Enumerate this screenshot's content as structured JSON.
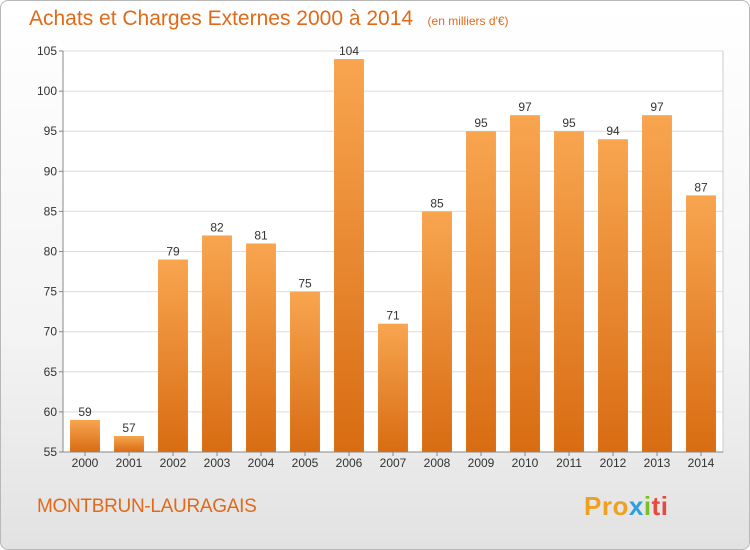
{
  "title": "Achats et Charges Externes 2000 à 2014",
  "unit": "(en milliers d'€)",
  "commune": "MONTBRUN-LAURAGAIS",
  "logo": {
    "parts": [
      "Pro",
      "x",
      "i",
      "ti"
    ]
  },
  "colors": {
    "bar": "#f08a2a",
    "bar_light": "#f8a550",
    "bar_dark": "#d86c12",
    "text": "#e06a1a",
    "grid": "#dcdcdc",
    "axis": "#888888"
  },
  "chart_data": {
    "type": "bar",
    "categories": [
      "2000",
      "2001",
      "2002",
      "2003",
      "2004",
      "2005",
      "2006",
      "2007",
      "2008",
      "2009",
      "2010",
      "2011",
      "2012",
      "2013",
      "2014"
    ],
    "values": [
      59,
      57,
      79,
      82,
      81,
      75,
      104,
      71,
      85,
      95,
      97,
      95,
      94,
      97,
      87
    ],
    "ylim": [
      55,
      105
    ],
    "yticks": [
      55,
      60,
      65,
      70,
      75,
      80,
      85,
      90,
      95,
      100,
      105
    ],
    "xlabel": "",
    "ylabel": "",
    "grid": true,
    "data_labels": true
  }
}
